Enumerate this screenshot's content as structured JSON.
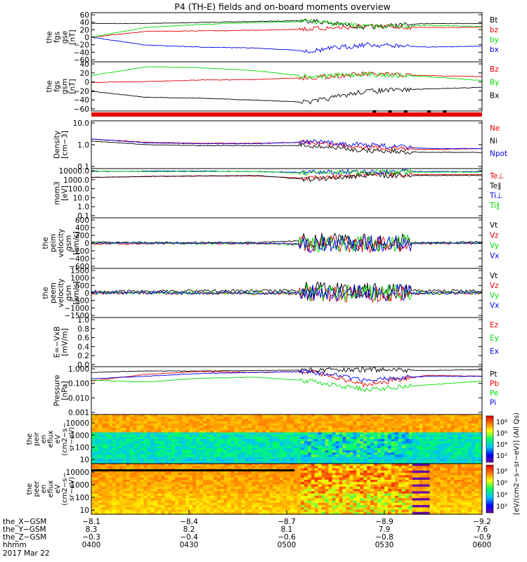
{
  "title": "P4 (TH-E) fields and on-board moments overview",
  "colors": {
    "black": "#000000",
    "red": "#e60000",
    "green": "#00dd00",
    "blue": "#0000ee"
  },
  "chart_data": [
    {
      "type": "line",
      "panel": "fgs-gse",
      "ylabel": [
        "the",
        "fgs",
        "gse",
        "[nT]"
      ],
      "ticks": [
        "60",
        "40",
        "20",
        "0",
        "−20",
        "−40",
        "−60"
      ],
      "ylim": [
        -60,
        60
      ],
      "series": [
        {
          "name": "Bt",
          "color": "black"
        },
        {
          "name": "bz",
          "color": "red"
        },
        {
          "name": "by",
          "color": "green"
        },
        {
          "name": "bx",
          "color": "blue"
        }
      ]
    },
    {
      "type": "line",
      "panel": "fgs-gsm",
      "ylabel": [
        "the",
        "fgs",
        "gsm",
        "[nT]"
      ],
      "ticks": [
        "40",
        "20",
        "0",
        "−20",
        "−40",
        "−60"
      ],
      "ylim": [
        -65,
        45
      ],
      "series": [
        {
          "name": "Bz",
          "color": "red"
        },
        {
          "name": "By",
          "color": "green"
        },
        {
          "name": "Bx",
          "color": "black"
        }
      ]
    },
    {
      "type": "line",
      "panel": "density",
      "ylabel": [
        "Density",
        "[cm−3]"
      ],
      "scale": "log",
      "ticks": [
        "10.0",
        "1.0",
        "0.1"
      ],
      "ylim": [
        0.1,
        10
      ],
      "series": [
        {
          "name": "Ne",
          "color": "red"
        },
        {
          "name": "Ni",
          "color": "black"
        },
        {
          "name": "Npot",
          "color": "blue"
        }
      ]
    },
    {
      "type": "line",
      "panel": "temperature",
      "ylabel": [
        "mom3",
        "[eV]"
      ],
      "scale": "log",
      "ticks": [
        "10000.0",
        "1000.0",
        "100.0",
        "10.0",
        "1.0",
        "0.1"
      ],
      "ylim": [
        0.1,
        10000
      ],
      "series": [
        {
          "name": "Te⊥",
          "color": "red"
        },
        {
          "name": "Te∥",
          "color": "black"
        },
        {
          "name": "Ti⊥",
          "color": "blue"
        },
        {
          "name": "Ti∥",
          "color": "green"
        }
      ]
    },
    {
      "type": "line",
      "panel": "ion-velocity",
      "ylabel": [
        "the",
        "peim",
        "velocity",
        "gsm",
        "[km/s]"
      ],
      "ticks": [
        "600",
        "400",
        "200",
        "0",
        "−200",
        "−400",
        "−600"
      ],
      "ylim": [
        -600,
        600
      ],
      "series": [
        {
          "name": "Vt",
          "color": "black"
        },
        {
          "name": "Vz",
          "color": "red"
        },
        {
          "name": "Vy",
          "color": "green"
        },
        {
          "name": "Vx",
          "color": "blue"
        }
      ]
    },
    {
      "type": "line",
      "panel": "electron-velocity",
      "ylabel": [
        "the",
        "peem",
        "velocity",
        "gsm",
        "[km/s]"
      ],
      "ticks": [
        "1500",
        "1000",
        "500",
        "0",
        "−500",
        "−1000",
        "−1500"
      ],
      "ylim": [
        -1500,
        1500
      ],
      "series": [
        {
          "name": "Vt",
          "color": "black"
        },
        {
          "name": "Vz",
          "color": "red"
        },
        {
          "name": "Vy",
          "color": "green"
        },
        {
          "name": "Vx",
          "color": "blue"
        }
      ]
    },
    {
      "type": "line",
      "panel": "efield",
      "ylabel": [
        "E=−VxB",
        "[mV/m]"
      ],
      "ticks": [
        "1.0",
        "0.8",
        "0.6",
        "0.4",
        "0.2",
        "0.0"
      ],
      "ylim": [
        0,
        1
      ],
      "series": [
        {
          "name": "Ez",
          "color": "red"
        },
        {
          "name": "Ey",
          "color": "green"
        },
        {
          "name": "Ex",
          "color": "blue"
        }
      ]
    },
    {
      "type": "line",
      "panel": "pressure",
      "ylabel": [
        "Pressure",
        "[nPa]"
      ],
      "scale": "log",
      "ticks": [
        "1.000",
        "0.100",
        "0.010",
        "0.001"
      ],
      "ylim": [
        0.001,
        1
      ],
      "series": [
        {
          "name": "Pt",
          "color": "black"
        },
        {
          "name": "Pb",
          "color": "red"
        },
        {
          "name": "Pe",
          "color": "green"
        },
        {
          "name": "Pi",
          "color": "blue"
        }
      ]
    },
    {
      "type": "heatmap",
      "panel": "ion-spectrogram",
      "ylabel": [
        "the",
        "peir",
        "en",
        "eflux",
        "eV",
        "(cm2−s−",
        "sr−eV)"
      ],
      "ticks": [
        "10000",
        "1000",
        "100",
        "10"
      ],
      "ylim": [
        5,
        25000
      ],
      "colorbar_ticks": [
        "10⁸",
        "10⁶",
        "10⁴",
        "10²"
      ]
    },
    {
      "type": "heatmap",
      "panel": "electron-spectrogram",
      "ylabel": [
        "the",
        "peer",
        "en",
        "eflux",
        "eV",
        "(cm2−s−",
        "sr−eV)"
      ],
      "ticks": [
        "10000",
        "1000",
        "100",
        "10"
      ],
      "ylim": [
        5,
        25000
      ],
      "colorbar_ticks": [
        "10⁸",
        "10⁶",
        "10⁴",
        "10²"
      ]
    }
  ],
  "colorbar_label": "[eV/(cm2−s−sr−eV)] (All Qs)",
  "xaxis": {
    "rows": [
      {
        "label": "the_X−GSM",
        "values": [
          "−8.1",
          "−8.4",
          "−8.7",
          "−8.9",
          "−9.2"
        ]
      },
      {
        "label": "the_Y−GSM",
        "values": [
          "8.3",
          "8.2",
          "8.1",
          "7.9",
          "7.6"
        ]
      },
      {
        "label": "the_Z−GSM",
        "values": [
          "−0.3",
          "−0.4",
          "−0.6",
          "−0.8",
          "−0.9"
        ]
      },
      {
        "label": "hhmm",
        "values": [
          "0400",
          "0430",
          "0500",
          "0530",
          "0600"
        ]
      }
    ],
    "date": "2017 Mar 22"
  }
}
